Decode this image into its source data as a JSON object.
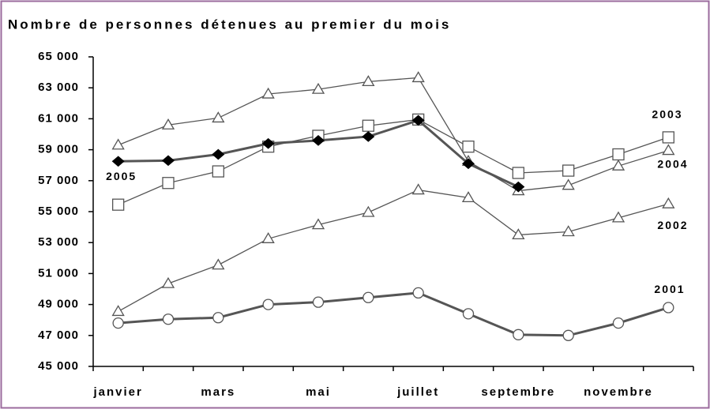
{
  "chart_data": {
    "type": "line",
    "title": "Nombre de personnes détenues au premier du mois",
    "categories": [
      "janvier",
      null,
      "mars",
      null,
      "mai",
      null,
      "juillet",
      null,
      "septembre",
      null,
      "novembre",
      null
    ],
    "ylim": [
      45000,
      65000
    ],
    "yticks": [
      {
        "value": 45000,
        "label": "45 000"
      },
      {
        "value": 47000,
        "label": "47 000"
      },
      {
        "value": 49000,
        "label": "49 000"
      },
      {
        "value": 51000,
        "label": "51 000"
      },
      {
        "value": 53000,
        "label": "53 000"
      },
      {
        "value": 55000,
        "label": "55 000"
      },
      {
        "value": 57000,
        "label": "57 000"
      },
      {
        "value": 59000,
        "label": "59 000"
      },
      {
        "value": 61000,
        "label": "61 000"
      },
      {
        "value": 63000,
        "label": "63 000"
      },
      {
        "value": 65000,
        "label": "65 000"
      }
    ],
    "grid": false,
    "series": [
      {
        "name": "2001",
        "color": "#555555",
        "marker": "circle",
        "values": [
          47800,
          48050,
          48150,
          49000,
          49150,
          49450,
          49750,
          48400,
          47050,
          47000,
          47800,
          48800
        ]
      },
      {
        "name": "2002",
        "color": "#555555",
        "marker": "triangle",
        "values": [
          48550,
          50350,
          51550,
          53250,
          54150,
          54950,
          56400,
          55900,
          53500,
          53700,
          54600,
          55500
        ]
      },
      {
        "name": "2003",
        "color": "#555555",
        "marker": "square",
        "values": [
          55450,
          56850,
          57600,
          59200,
          59900,
          60550,
          60950,
          59200,
          57500,
          57650,
          58700,
          59800
        ]
      },
      {
        "name": "2004",
        "color": "#555555",
        "marker": "triangle",
        "values": [
          59300,
          60600,
          61050,
          62600,
          62900,
          63400,
          63650,
          58250,
          56350,
          56700,
          57950,
          58950
        ]
      },
      {
        "name": "2005",
        "color": "#555555",
        "marker": "diamond",
        "values": [
          58250,
          58300,
          58700,
          59400,
          59600,
          59850,
          60900,
          58100,
          56600,
          null,
          null,
          null
        ]
      }
    ]
  }
}
